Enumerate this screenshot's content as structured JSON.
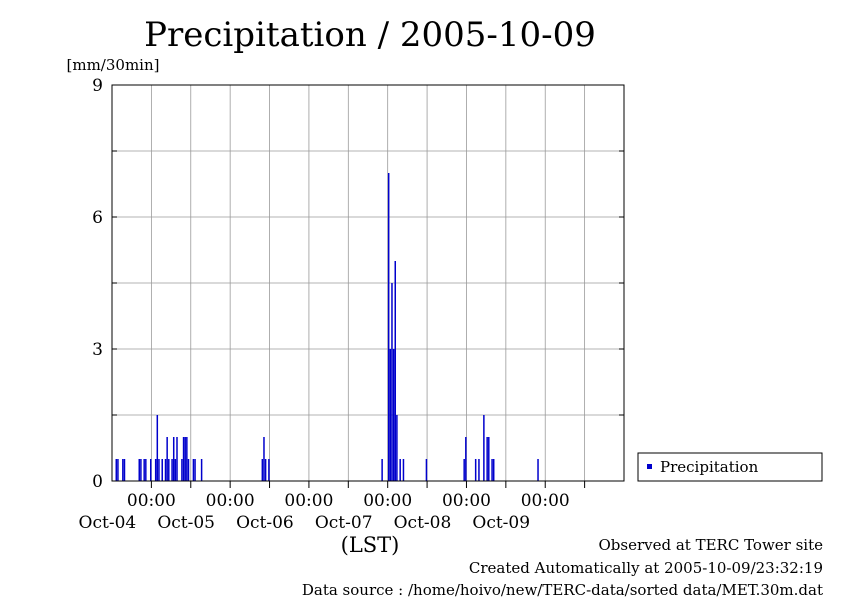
{
  "chart_data": {
    "type": "bar",
    "title": "Precipitation / 2005-10-09",
    "ylabel": "[mm/30min]",
    "xlabel": "(LST)",
    "ylim": [
      0,
      9
    ],
    "yticks": [
      "0",
      "3",
      "6",
      "9"
    ],
    "xlim_days": [
      "2005-10-03 12:00",
      "2005-10-09 24:00"
    ],
    "xticks": [
      {
        "time": "00:00",
        "date": "Oct-04"
      },
      {
        "time": "00:00",
        "date": "Oct-05"
      },
      {
        "time": "00:00",
        "date": "Oct-06"
      },
      {
        "time": "00:00",
        "date": "Oct-07"
      },
      {
        "time": "00:00",
        "date": "Oct-08"
      },
      {
        "time": "00:00",
        "date": "Oct-09"
      }
    ],
    "grid": true,
    "legend_position": "right",
    "series": [
      {
        "name": "Precipitation",
        "color": "#0000cc",
        "points": [
          [
            "2005-10-03 13:00",
            0.5
          ],
          [
            "2005-10-03 13:30",
            0.5
          ],
          [
            "2005-10-03 15:00",
            0.5
          ],
          [
            "2005-10-03 15:30",
            0.5
          ],
          [
            "2005-10-03 20:00",
            0.5
          ],
          [
            "2005-10-03 20:30",
            0.5
          ],
          [
            "2005-10-03 21:30",
            0.5
          ],
          [
            "2005-10-03 22:00",
            0.5
          ],
          [
            "2005-10-03 23:30",
            0.5
          ],
          [
            "2005-10-04 01:00",
            0.5
          ],
          [
            "2005-10-04 01:30",
            1.5
          ],
          [
            "2005-10-04 02:00",
            0.5
          ],
          [
            "2005-10-04 03:00",
            0.5
          ],
          [
            "2005-10-04 04:00",
            0.5
          ],
          [
            "2005-10-04 04:30",
            1.0
          ],
          [
            "2005-10-04 05:00",
            0.5
          ],
          [
            "2005-10-04 06:00",
            0.5
          ],
          [
            "2005-10-04 06:30",
            1.0
          ],
          [
            "2005-10-04 07:00",
            0.5
          ],
          [
            "2005-10-04 07:30",
            1.0
          ],
          [
            "2005-10-04 09:00",
            0.5
          ],
          [
            "2005-10-04 09:30",
            1.0
          ],
          [
            "2005-10-04 10:00",
            1.0
          ],
          [
            "2005-10-04 10:30",
            1.0
          ],
          [
            "2005-10-04 11:00",
            0.5
          ],
          [
            "2005-10-04 12:30",
            0.5
          ],
          [
            "2005-10-04 13:00",
            0.5
          ],
          [
            "2005-10-04 15:00",
            0.5
          ],
          [
            "2005-10-05 09:30",
            0.5
          ],
          [
            "2005-10-05 10:00",
            1.0
          ],
          [
            "2005-10-05 10:30",
            0.5
          ],
          [
            "2005-10-05 11:30",
            0.5
          ],
          [
            "2005-10-06 22:00",
            0.5
          ],
          [
            "2005-10-07 00:00",
            7.0
          ],
          [
            "2005-10-07 00:30",
            3.0
          ],
          [
            "2005-10-07 01:00",
            4.5
          ],
          [
            "2005-10-07 01:30",
            3.0
          ],
          [
            "2005-10-07 02:00",
            5.0
          ],
          [
            "2005-10-07 02:30",
            1.5
          ],
          [
            "2005-10-07 03:30",
            0.5
          ],
          [
            "2005-10-07 04:30",
            0.5
          ],
          [
            "2005-10-07 11:30",
            0.5
          ],
          [
            "2005-10-07 23:00",
            0.5
          ],
          [
            "2005-10-07 23:30",
            1.0
          ],
          [
            "2005-10-08 02:30",
            0.5
          ],
          [
            "2005-10-08 03:30",
            0.5
          ],
          [
            "2005-10-08 05:00",
            1.5
          ],
          [
            "2005-10-08 06:00",
            1.0
          ],
          [
            "2005-10-08 06:30",
            1.0
          ],
          [
            "2005-10-08 07:30",
            0.5
          ],
          [
            "2005-10-08 08:00",
            0.5
          ],
          [
            "2005-10-08 21:30",
            0.5
          ]
        ]
      }
    ]
  },
  "footer": {
    "observed": "Observed at TERC Tower site",
    "created": "Created Automatically at 2005-10-09/23:32:19",
    "source": "Data source : /home/hoivo/new/TERC-data/sorted data/MET.30m.dat"
  }
}
